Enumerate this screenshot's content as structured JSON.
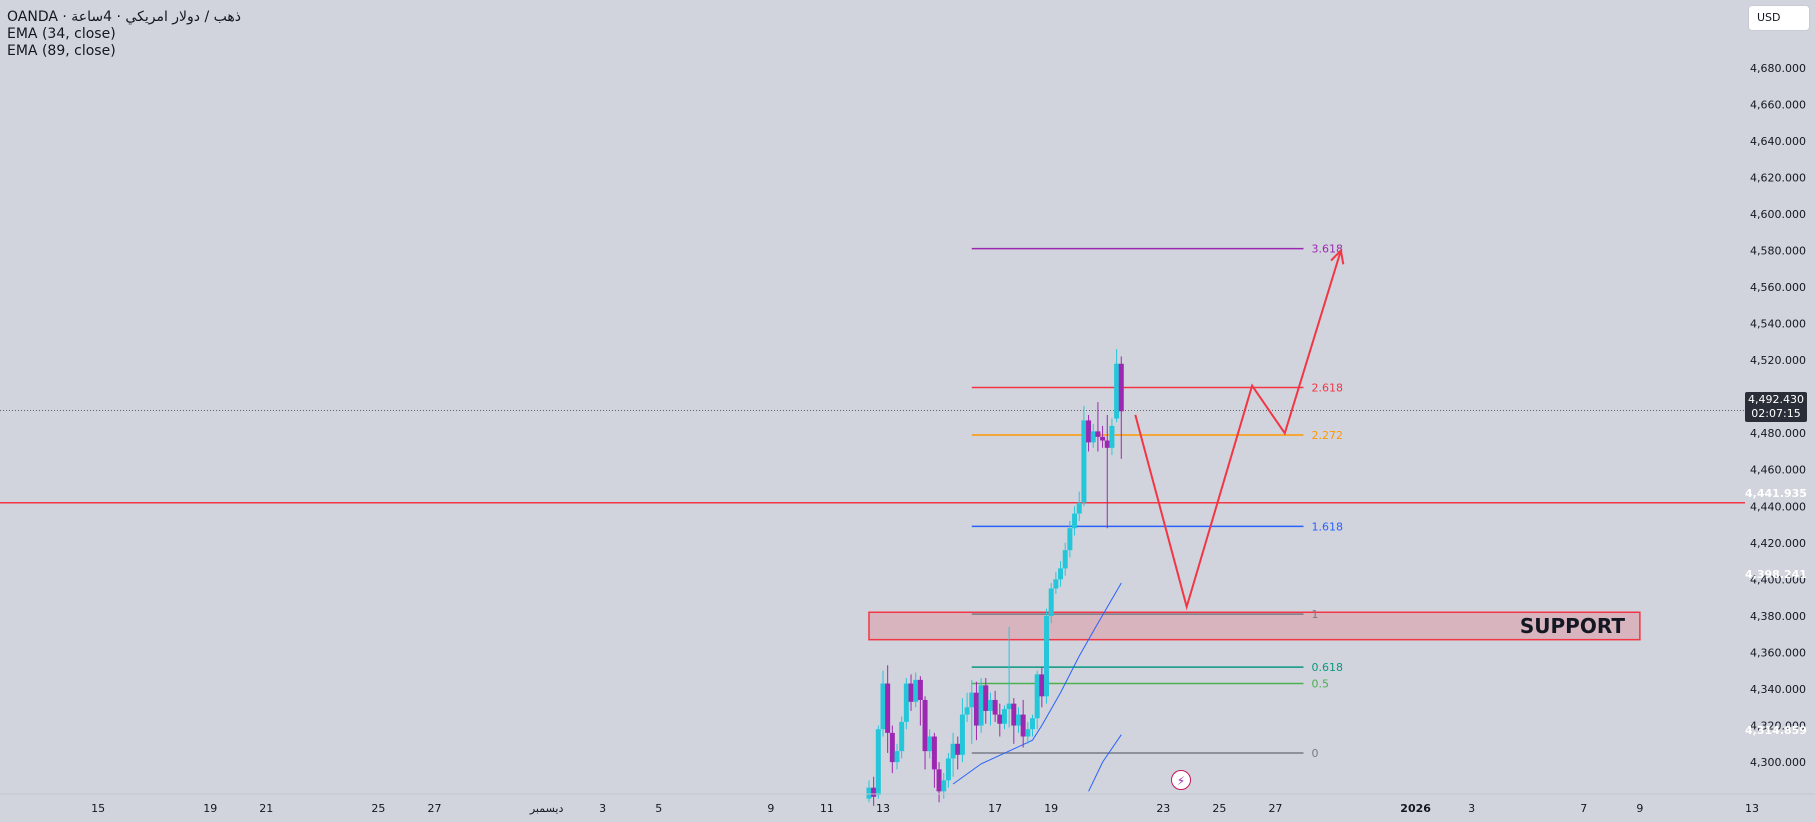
{
  "legend": {
    "symbol": "OANDA · ذهب / دولار امريكي · 4ساعة",
    "ema1": "EMA (34, close)",
    "ema2": "EMA (89, close)"
  },
  "currency_button": "USD",
  "price_tags": {
    "current_price": "4,492.430",
    "countdown": "02:07:15",
    "horizontal_line": "4,441.935",
    "ema34": "4,398.241",
    "ema89": "4,314.859"
  },
  "colors": {
    "background": "#d1d4dc",
    "bull": "#26c6da",
    "bear": "#9c27b0",
    "red": "#f23645",
    "ema": "#2962ff"
  },
  "chart_data": {
    "type": "candlestick",
    "title": "",
    "y_axis": {
      "min": 4285,
      "max": 4690,
      "ticks": [
        4680,
        4660,
        4640,
        4620,
        4600,
        4580,
        4560,
        4540,
        4520,
        4500,
        4480,
        4460,
        4440,
        4420,
        4400,
        4380,
        4360,
        4340,
        4320,
        4300
      ],
      "tick_labels": [
        "4,680.000",
        "4,660.000",
        "4,640.000",
        "4,620.000",
        "4,600.000",
        "4,580.000",
        "4,560.000",
        "4,540.000",
        "4,520.000",
        "4,500.000",
        "4,480.000",
        "4,460.000",
        "4,440.000",
        "4,420.000",
        "4,400.000",
        "4,380.000",
        "4,360.000",
        "4,340.000",
        "4,320.000",
        "4,300.000"
      ]
    },
    "x_axis": {
      "start": "2025-11-12",
      "end": "2026-01-13",
      "ticks": [
        {
          "date": "2025-11-15",
          "label": "15"
        },
        {
          "date": "2025-11-19",
          "label": "19"
        },
        {
          "date": "2025-11-21",
          "label": "21"
        },
        {
          "date": "2025-11-25",
          "label": "25"
        },
        {
          "date": "2025-11-27",
          "label": "27"
        },
        {
          "date": "2025-12-01",
          "label": "ديسمبر"
        },
        {
          "date": "2025-12-03",
          "label": "3"
        },
        {
          "date": "2025-12-05",
          "label": "5"
        },
        {
          "date": "2025-12-09",
          "label": "9"
        },
        {
          "date": "2025-12-11",
          "label": "11"
        },
        {
          "date": "2025-12-13",
          "label": "13"
        },
        {
          "date": "2025-12-17",
          "label": "17"
        },
        {
          "date": "2025-12-19",
          "label": "19"
        },
        {
          "date": "2025-12-23",
          "label": "23"
        },
        {
          "date": "2025-12-25",
          "label": "25"
        },
        {
          "date": "2025-12-27",
          "label": "27"
        },
        {
          "date": "2026-01-01",
          "label": "2026"
        },
        {
          "date": "2026-01-03",
          "label": "3"
        },
        {
          "date": "2026-01-07",
          "label": "7"
        },
        {
          "date": "2026-01-09",
          "label": "9"
        },
        {
          "date": "2026-01-13",
          "label": "13"
        }
      ]
    },
    "candles": [
      {
        "t": "2025-12-12 12:00",
        "o": 4280,
        "h": 4290,
        "c": 4286,
        "l": 4278
      },
      {
        "t": "2025-12-12 16:00",
        "o": 4286,
        "h": 4292,
        "c": 4281,
        "l": 4276
      },
      {
        "t": "2025-12-12 20:00",
        "o": 4282,
        "h": 4320,
        "c": 4318,
        "l": 4280
      },
      {
        "t": "2025-12-13 00:00",
        "o": 4318,
        "h": 4350,
        "c": 4343,
        "l": 4314
      },
      {
        "t": "2025-12-13 04:00",
        "o": 4343,
        "h": 4353,
        "c": 4316,
        "l": 4305
      },
      {
        "t": "2025-12-13 08:00",
        "o": 4316,
        "h": 4320,
        "c": 4300,
        "l": 4294
      },
      {
        "t": "2025-12-13 12:00",
        "o": 4300,
        "h": 4310,
        "c": 4306,
        "l": 4296
      },
      {
        "t": "2025-12-13 16:00",
        "o": 4306,
        "h": 4325,
        "c": 4322,
        "l": 4302
      },
      {
        "t": "2025-12-13 20:00",
        "o": 4322,
        "h": 4346,
        "c": 4343,
        "l": 4318
      },
      {
        "t": "2025-12-14 00:00",
        "o": 4343,
        "h": 4348,
        "c": 4333,
        "l": 4328
      },
      {
        "t": "2025-12-14 04:00",
        "o": 4333,
        "h": 4349,
        "c": 4345,
        "l": 4330
      },
      {
        "t": "2025-12-14 08:00",
        "o": 4345,
        "h": 4347,
        "c": 4334,
        "l": 4320
      },
      {
        "t": "2025-12-14 12:00",
        "o": 4334,
        "h": 4336,
        "c": 4306,
        "l": 4296
      },
      {
        "t": "2025-12-14 16:00",
        "o": 4306,
        "h": 4318,
        "c": 4314,
        "l": 4302
      },
      {
        "t": "2025-12-14 20:00",
        "o": 4314,
        "h": 4316,
        "c": 4296,
        "l": 4286
      },
      {
        "t": "2025-12-15 00:00",
        "o": 4296,
        "h": 4300,
        "c": 4284,
        "l": 4278
      },
      {
        "t": "2025-12-15 04:00",
        "o": 4284,
        "h": 4294,
        "c": 4290,
        "l": 4280
      },
      {
        "t": "2025-12-15 08:00",
        "o": 4290,
        "h": 4305,
        "c": 4302,
        "l": 4286
      },
      {
        "t": "2025-12-15 12:00",
        "o": 4302,
        "h": 4316,
        "c": 4310,
        "l": 4292
      },
      {
        "t": "2025-12-15 16:00",
        "o": 4310,
        "h": 4314,
        "c": 4304,
        "l": 4296
      },
      {
        "t": "2025-12-15 20:00",
        "o": 4304,
        "h": 4335,
        "c": 4326,
        "l": 4300
      },
      {
        "t": "2025-12-16 00:00",
        "o": 4326,
        "h": 4338,
        "c": 4330,
        "l": 4322
      },
      {
        "t": "2025-12-16 04:00",
        "o": 4330,
        "h": 4345,
        "c": 4338,
        "l": 4310
      },
      {
        "t": "2025-12-16 08:00",
        "o": 4338,
        "h": 4344,
        "c": 4320,
        "l": 4312
      },
      {
        "t": "2025-12-16 12:00",
        "o": 4320,
        "h": 4346,
        "c": 4342,
        "l": 4316
      },
      {
        "t": "2025-12-16 16:00",
        "o": 4342,
        "h": 4346,
        "c": 4328,
        "l": 4321
      },
      {
        "t": "2025-12-16 20:00",
        "o": 4328,
        "h": 4338,
        "c": 4334,
        "l": 4320
      },
      {
        "t": "2025-12-17 00:00",
        "o": 4334,
        "h": 4339,
        "c": 4326,
        "l": 4322
      },
      {
        "t": "2025-12-17 04:00",
        "o": 4326,
        "h": 4332,
        "c": 4321,
        "l": 4314
      },
      {
        "t": "2025-12-17 08:00",
        "o": 4321,
        "h": 4331,
        "c": 4329,
        "l": 4318
      },
      {
        "t": "2025-12-17 12:00",
        "o": 4329,
        "h": 4374,
        "c": 4332,
        "l": 4319
      },
      {
        "t": "2025-12-17 16:00",
        "o": 4332,
        "h": 4335,
        "c": 4320,
        "l": 4310
      },
      {
        "t": "2025-12-17 20:00",
        "o": 4320,
        "h": 4330,
        "c": 4326,
        "l": 4316
      },
      {
        "t": "2025-12-18 00:00",
        "o": 4326,
        "h": 4334,
        "c": 4314,
        "l": 4308
      },
      {
        "t": "2025-12-18 04:00",
        "o": 4314,
        "h": 4322,
        "c": 4318,
        "l": 4310
      },
      {
        "t": "2025-12-18 08:00",
        "o": 4318,
        "h": 4326,
        "c": 4324,
        "l": 4314
      },
      {
        "t": "2025-12-18 12:00",
        "o": 4324,
        "h": 4350,
        "c": 4348,
        "l": 4318
      },
      {
        "t": "2025-12-18 16:00",
        "o": 4348,
        "h": 4352,
        "c": 4336,
        "l": 4330
      },
      {
        "t": "2025-12-18 20:00",
        "o": 4336,
        "h": 4384,
        "c": 4380,
        "l": 4332
      },
      {
        "t": "2025-12-19 00:00",
        "o": 4380,
        "h": 4398,
        "c": 4395,
        "l": 4376
      },
      {
        "t": "2025-12-19 04:00",
        "o": 4395,
        "h": 4404,
        "c": 4400,
        "l": 4392
      },
      {
        "t": "2025-12-19 08:00",
        "o": 4400,
        "h": 4410,
        "c": 4406,
        "l": 4396
      },
      {
        "t": "2025-12-19 12:00",
        "o": 4406,
        "h": 4420,
        "c": 4416,
        "l": 4402
      },
      {
        "t": "2025-12-19 16:00",
        "o": 4416,
        "h": 4432,
        "c": 4428,
        "l": 4412
      },
      {
        "t": "2025-12-19 20:00",
        "o": 4428,
        "h": 4440,
        "c": 4436,
        "l": 4424
      },
      {
        "t": "2025-12-20 00:00",
        "o": 4436,
        "h": 4448,
        "c": 4442,
        "l": 4432
      },
      {
        "t": "2025-12-20 04:00",
        "o": 4442,
        "h": 4495,
        "c": 4487,
        "l": 4440
      },
      {
        "t": "2025-12-20 08:00",
        "o": 4487,
        "h": 4490,
        "c": 4475,
        "l": 4470
      },
      {
        "t": "2025-12-20 12:00",
        "o": 4475,
        "h": 4485,
        "c": 4481,
        "l": 4472
      },
      {
        "t": "2025-12-20 16:00",
        "o": 4481,
        "h": 4497,
        "c": 4478,
        "l": 4470
      },
      {
        "t": "2025-12-20 20:00",
        "o": 4478,
        "h": 4484,
        "c": 4476,
        "l": 4472
      },
      {
        "t": "2025-12-21 00:00",
        "o": 4476,
        "h": 4490,
        "c": 4472,
        "l": 4428
      },
      {
        "t": "2025-12-21 04:00",
        "o": 4472,
        "h": 4488,
        "c": 4484,
        "l": 4468
      },
      {
        "t": "2025-12-21 08:00",
        "o": 4488,
        "h": 4526,
        "c": 4518,
        "l": 4486
      },
      {
        "t": "2025-12-21 12:00",
        "o": 4518,
        "h": 4522,
        "c": 4492,
        "l": 4466
      }
    ],
    "ema_34": [
      {
        "t": "2025-12-15 12:00",
        "v": 4288
      },
      {
        "t": "2025-12-16 12:00",
        "v": 4299
      },
      {
        "t": "2025-12-17 12:00",
        "v": 4306
      },
      {
        "t": "2025-12-18 08:00",
        "v": 4312
      },
      {
        "t": "2025-12-18 16:00",
        "v": 4320
      },
      {
        "t": "2025-12-19 08:00",
        "v": 4338
      },
      {
        "t": "2025-12-20 00:00",
        "v": 4358
      },
      {
        "t": "2025-12-20 16:00",
        "v": 4376
      },
      {
        "t": "2025-12-21 12:00",
        "v": 4398
      }
    ],
    "ema_89": [
      {
        "t": "2025-12-20 08:00",
        "v": 4284
      },
      {
        "t": "2025-12-20 20:00",
        "v": 4300
      },
      {
        "t": "2025-12-21 12:00",
        "v": 4315
      }
    ],
    "horizontal_line": {
      "price": 4441.935
    },
    "current_price": 4492.43,
    "fibonacci": {
      "start": "2025-12-16 04:00",
      "end": "2025-12-28 00:00",
      "levels": [
        {
          "ratio": "3.618",
          "price": 4581,
          "color": "#9c27b0"
        },
        {
          "ratio": "2.618",
          "price": 4505,
          "color": "#f23645"
        },
        {
          "ratio": "2.272",
          "price": 4479,
          "color": "#ff9800"
        },
        {
          "ratio": "1.618",
          "price": 4429,
          "color": "#2962ff"
        },
        {
          "ratio": "1",
          "price": 4381,
          "color": "#787b86"
        },
        {
          "ratio": "0.618",
          "price": 4352,
          "color": "#089981"
        },
        {
          "ratio": "0.5",
          "price": 4343,
          "color": "#4caf50"
        },
        {
          "ratio": "0",
          "price": 4305,
          "color": "#787b86"
        }
      ]
    },
    "support_zone": {
      "label": "SUPPORT",
      "start": "2025-12-12 12:00",
      "end": "2026-01-09 00:00",
      "top": 4382,
      "bottom": 4367
    },
    "projection_path": [
      {
        "t": "2025-12-22 00:00",
        "p": 4490
      },
      {
        "t": "2025-12-23 20:00",
        "p": 4385
      },
      {
        "t": "2025-12-26 04:00",
        "p": 4506
      },
      {
        "t": "2025-12-27 08:00",
        "p": 4480
      },
      {
        "t": "2025-12-29 08:00",
        "p": 4580
      }
    ]
  }
}
